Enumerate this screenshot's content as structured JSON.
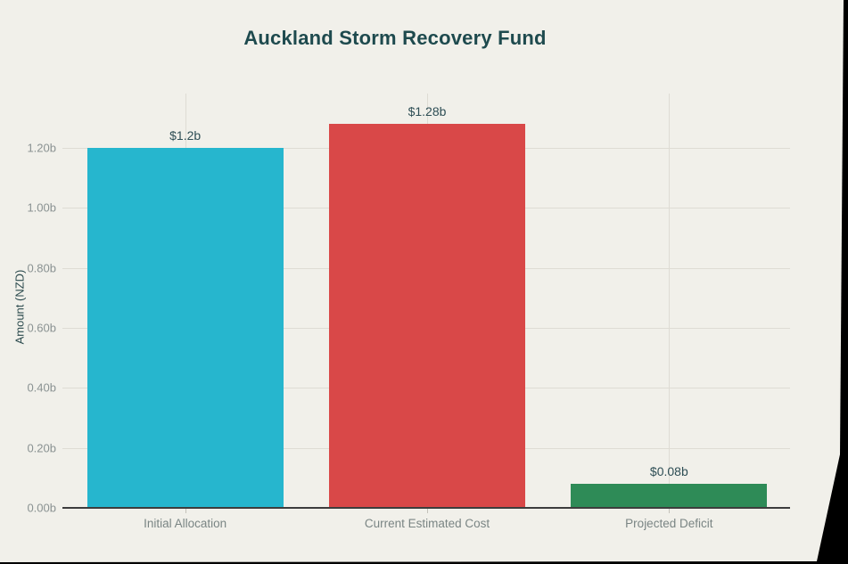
{
  "page": {
    "background": "#F1F0EA",
    "edge_color": "#000000"
  },
  "chart_data": {
    "type": "bar",
    "title": "Auckland Storm Recovery Fund",
    "categories": [
      "Initial Allocation",
      "Current Estimated Cost",
      "Projected Deficit"
    ],
    "values": [
      1.2,
      1.28,
      0.08
    ],
    "value_labels": [
      "$1.2b",
      "$1.28b",
      "$0.08b"
    ],
    "bar_colors": [
      "#26B6CE",
      "#D94848",
      "#2E8B57"
    ],
    "xlabel": "",
    "ylabel": "Amount (NZD)",
    "ylim": [
      0,
      1.381
    ],
    "ytick_step": 0.2,
    "yticks": [
      "0.00b",
      "0.20b",
      "0.40b",
      "0.60b",
      "0.80b",
      "1.00b",
      "1.20b"
    ],
    "grid": true,
    "legend": false,
    "colors": {
      "title": "#1E4A4E",
      "axis_label": "#2B4A4D",
      "tick_label": "#8A9292",
      "x_label": "#7A8584",
      "value_label": "#2E4E55",
      "gridline": "#DEDCD4",
      "axis_line": "#3D3D3D",
      "x_tick": "#C4C2BA"
    }
  }
}
